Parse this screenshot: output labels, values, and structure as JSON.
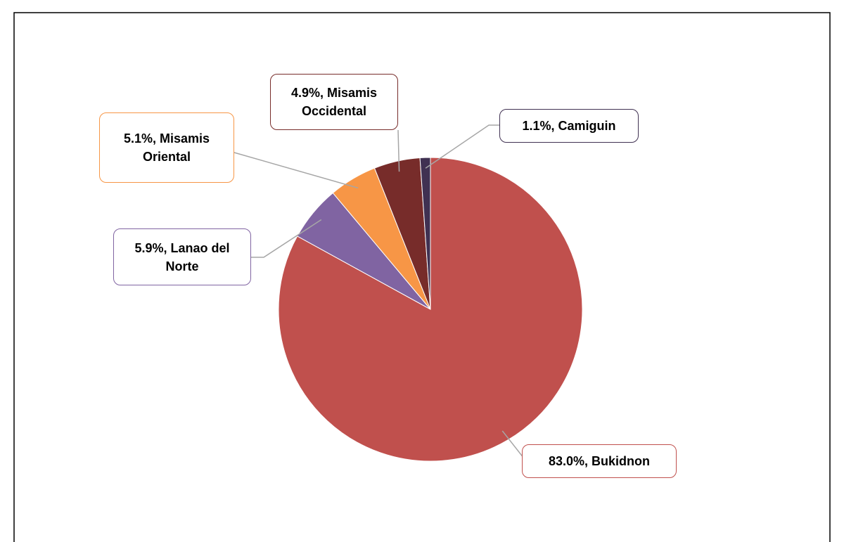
{
  "chart_data": {
    "type": "pie",
    "values": [
      83.0,
      5.9,
      5.1,
      4.9,
      1.1
    ],
    "value_labels": [
      "83.0%, Bukidnon",
      "5.9%, Lanao del Norte",
      "5.1%, Misamis Oriental",
      "4.9%, Misamis Occidental",
      "1.1%, Camiguin"
    ],
    "colors": [
      "#c0504d",
      "#8064a2",
      "#f79646",
      "#772c2a",
      "#403152"
    ]
  }
}
